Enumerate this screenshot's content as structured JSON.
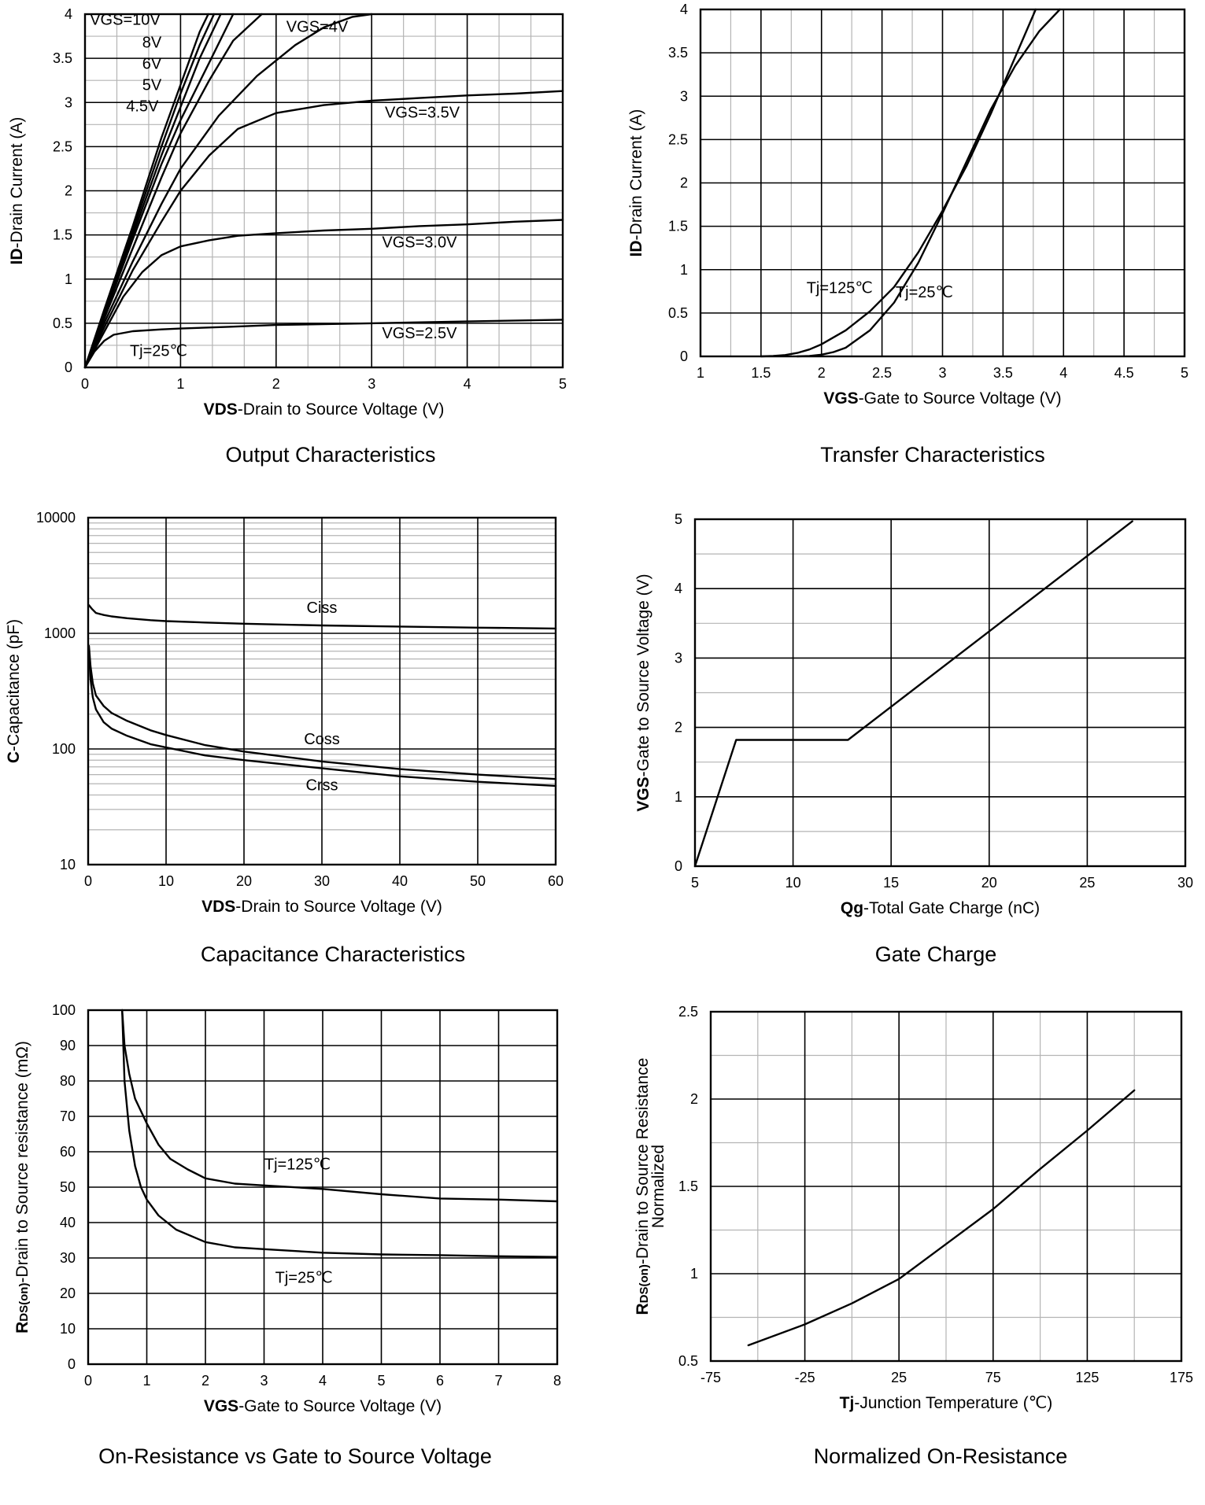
{
  "chart_data": [
    {
      "id": "output",
      "type": "line",
      "title": "Output Characteristics",
      "xlabel_bold": "VDS",
      "xlabel_rest": "-Drain to Source Voltage (V)",
      "ylabel_bold": "ID",
      "ylabel_rest": "-Drain Current (A)",
      "xlim": [
        0,
        5
      ],
      "ylim": [
        0,
        4
      ],
      "xscale": "linear",
      "yscale": "linear",
      "xticks": [
        0,
        1,
        2,
        3,
        4,
        5
      ],
      "yticks": [
        0,
        0.5,
        1,
        1.5,
        2,
        2.5,
        3,
        3.5,
        4
      ],
      "xtick_labels": [
        "0",
        "1",
        "2",
        "3",
        "4",
        "5"
      ],
      "ytick_labels": [
        "0",
        "0.5",
        "1",
        "1.5",
        "2",
        "2.5",
        "3",
        "3.5",
        "4"
      ],
      "grid": {
        "major_x": true,
        "major_y": true,
        "minor_x": 2,
        "minor_y": 1
      },
      "series": [
        {
          "name": "VGS=10V",
          "x": [
            0,
            0.2,
            0.5,
            0.8,
            1.0,
            1.2,
            1.29
          ],
          "y": [
            0,
            0.65,
            1.6,
            2.6,
            3.2,
            3.8,
            4.0
          ]
        },
        {
          "name": "8V",
          "x": [
            0,
            0.2,
            0.5,
            0.8,
            1.0,
            1.2,
            1.35
          ],
          "y": [
            0,
            0.62,
            1.55,
            2.5,
            3.1,
            3.65,
            4.0
          ]
        },
        {
          "name": "6V",
          "x": [
            0,
            0.2,
            0.5,
            0.8,
            1.0,
            1.2,
            1.42
          ],
          "y": [
            0,
            0.6,
            1.5,
            2.4,
            2.95,
            3.5,
            4.0
          ]
        },
        {
          "name": "5V",
          "x": [
            0,
            0.2,
            0.5,
            0.8,
            1.0,
            1.3,
            1.55
          ],
          "y": [
            0,
            0.58,
            1.45,
            2.3,
            2.8,
            3.45,
            4.0
          ]
        },
        {
          "name": "4.5V",
          "x": [
            0,
            0.2,
            0.5,
            0.8,
            1.0,
            1.3,
            1.55,
            1.85
          ],
          "y": [
            0,
            0.55,
            1.35,
            2.15,
            2.65,
            3.25,
            3.7,
            4.0
          ]
        },
        {
          "name": "VGS=4V",
          "x": [
            0,
            0.2,
            0.5,
            0.8,
            1.0,
            1.4,
            1.8,
            2.2,
            2.5,
            2.8,
            3.0
          ],
          "y": [
            0,
            0.5,
            1.2,
            1.85,
            2.25,
            2.85,
            3.3,
            3.65,
            3.85,
            3.97,
            4.0
          ]
        },
        {
          "name": "VGS=3.5V",
          "x": [
            0,
            0.2,
            0.5,
            0.8,
            1.0,
            1.3,
            1.6,
            2.0,
            2.5,
            3.0,
            3.5,
            4.0,
            4.5,
            5.0
          ],
          "y": [
            0,
            0.45,
            1.1,
            1.65,
            2.0,
            2.4,
            2.7,
            2.88,
            2.97,
            3.02,
            3.05,
            3.08,
            3.1,
            3.13
          ]
        },
        {
          "name": "VGS=3.0V",
          "x": [
            0,
            0.2,
            0.4,
            0.6,
            0.8,
            1.0,
            1.3,
            1.6,
            2.0,
            2.5,
            3.0,
            3.5,
            4.0,
            4.5,
            5.0
          ],
          "y": [
            0,
            0.4,
            0.8,
            1.08,
            1.27,
            1.37,
            1.44,
            1.49,
            1.52,
            1.55,
            1.57,
            1.6,
            1.62,
            1.65,
            1.67
          ]
        },
        {
          "name": "VGS=2.5V",
          "x": [
            0,
            0.1,
            0.2,
            0.3,
            0.5,
            0.8,
            1.0,
            1.5,
            2.0,
            3.0,
            4.0,
            5.0
          ],
          "y": [
            0,
            0.18,
            0.3,
            0.37,
            0.41,
            0.43,
            0.44,
            0.46,
            0.48,
            0.5,
            0.52,
            0.54
          ]
        }
      ],
      "annotations": [
        {
          "text": "VGS=10V",
          "x": 0.42,
          "y": 3.88
        },
        {
          "text": "8V",
          "x": 0.7,
          "y": 3.62
        },
        {
          "text": "6V",
          "x": 0.7,
          "y": 3.38
        },
        {
          "text": "5V",
          "x": 0.7,
          "y": 3.14
        },
        {
          "text": "4.5V",
          "x": 0.6,
          "y": 2.9
        },
        {
          "text": "VGS=4V",
          "x": 2.43,
          "y": 3.8
        },
        {
          "text": "VGS=3.5V",
          "x": 3.53,
          "y": 2.83
        },
        {
          "text": "VGS=3.0V",
          "x": 3.5,
          "y": 1.36
        },
        {
          "text": "VGS=2.5V",
          "x": 3.5,
          "y": 0.33
        },
        {
          "text": "Tj=25℃",
          "x": 0.77,
          "y": 0.13
        }
      ]
    },
    {
      "id": "transfer",
      "type": "line",
      "title": "Transfer Characteristics",
      "xlabel_bold": "VGS",
      "xlabel_rest": "-Gate to Source Voltage (V)",
      "ylabel_bold": "ID",
      "ylabel_rest": "-Drain Current (A)",
      "xlim": [
        1,
        5
      ],
      "ylim": [
        0,
        4
      ],
      "xscale": "linear",
      "yscale": "linear",
      "xticks": [
        1,
        1.5,
        2,
        2.5,
        3,
        3.5,
        4,
        4.5,
        5
      ],
      "yticks": [
        0,
        0.5,
        1,
        1.5,
        2,
        2.5,
        3,
        3.5,
        4
      ],
      "xtick_labels": [
        "1",
        "1.5",
        "2",
        "2.5",
        "3",
        "3.5",
        "4",
        "4.5",
        "5"
      ],
      "ytick_labels": [
        "0",
        "0.5",
        "1",
        "1.5",
        "2",
        "2.5",
        "3",
        "3.5",
        "4"
      ],
      "grid": {
        "major_x": true,
        "major_y": true,
        "minor_x": 1,
        "minor_y": 0
      },
      "series": [
        {
          "name": "Tj=125℃",
          "x": [
            1.5,
            1.6,
            1.7,
            1.8,
            1.9,
            2.0,
            2.2,
            2.4,
            2.6,
            2.8,
            3.0,
            3.2,
            3.4,
            3.6,
            3.77
          ],
          "y": [
            0,
            0.005,
            0.015,
            0.04,
            0.08,
            0.14,
            0.3,
            0.52,
            0.8,
            1.2,
            1.68,
            2.2,
            2.8,
            3.45,
            4.0
          ]
        },
        {
          "name": "Tj=25℃",
          "x": [
            1.8,
            1.9,
            2.0,
            2.1,
            2.2,
            2.4,
            2.6,
            2.8,
            3.0,
            3.2,
            3.4,
            3.6,
            3.8,
            3.97
          ],
          "y": [
            0,
            0.005,
            0.02,
            0.05,
            0.1,
            0.3,
            0.62,
            1.08,
            1.65,
            2.25,
            2.85,
            3.35,
            3.75,
            4.0
          ]
        }
      ],
      "annotations": [
        {
          "text": "Tj=125℃",
          "x": 2.15,
          "y": 0.73
        },
        {
          "text": "Tj=25℃",
          "x": 2.85,
          "y": 0.68
        }
      ]
    },
    {
      "id": "capacitance",
      "type": "line",
      "title": "Capacitance Characteristics",
      "xlabel_bold": "VDS",
      "xlabel_rest": "-Drain to Source Voltage (V)",
      "ylabel_bold": "C",
      "ylabel_rest": "-Capacitance (pF)",
      "xlim": [
        0,
        60
      ],
      "ylim": [
        10,
        10000
      ],
      "xscale": "linear",
      "yscale": "log",
      "xticks": [
        0,
        10,
        20,
        30,
        40,
        50,
        60
      ],
      "yticks": [
        10,
        100,
        1000,
        10000
      ],
      "xtick_labels": [
        "0",
        "10",
        "20",
        "30",
        "40",
        "50",
        "60"
      ],
      "ytick_labels": [
        "10",
        "100",
        "1000",
        "10000"
      ],
      "grid": {
        "major_x": true,
        "major_y": true,
        "minor_x": 0,
        "minor_y": "log"
      },
      "series": [
        {
          "name": "Ciss",
          "x": [
            0.1,
            0.5,
            1,
            2,
            3,
            5,
            8,
            10,
            15,
            20,
            30,
            40,
            50,
            60
          ],
          "y": [
            1750,
            1620,
            1500,
            1440,
            1400,
            1350,
            1300,
            1275,
            1240,
            1210,
            1170,
            1145,
            1120,
            1100
          ]
        },
        {
          "name": "Coss",
          "x": [
            0.1,
            0.3,
            0.6,
            1,
            2,
            3,
            5,
            8,
            10,
            15,
            20,
            30,
            40,
            50,
            60
          ],
          "y": [
            780,
            520,
            370,
            290,
            235,
            205,
            175,
            145,
            132,
            108,
            95,
            78,
            67,
            60,
            55
          ]
        },
        {
          "name": "Crss",
          "x": [
            0.1,
            0.3,
            0.6,
            1,
            2,
            3,
            5,
            8,
            10,
            15,
            20,
            30,
            40,
            50,
            60
          ],
          "y": [
            700,
            400,
            280,
            220,
            170,
            150,
            130,
            110,
            103,
            88,
            80,
            68,
            58,
            52,
            48
          ]
        }
      ],
      "annotations": [
        {
          "text": "Ciss",
          "x": 30,
          "y": 1500
        },
        {
          "text": "Coss",
          "x": 30,
          "y": 110
        },
        {
          "text": "Crss",
          "x": 30,
          "y": 44
        }
      ]
    },
    {
      "id": "gatecharge",
      "type": "line",
      "title": "Gate Charge",
      "xlabel_bold": "Qg",
      "xlabel_rest": "-Total Gate Charge (nC)",
      "ylabel_bold": "VGS",
      "ylabel_rest": "-Gate to Source Voltage (V)",
      "xlim": [
        5,
        30
      ],
      "ylim": [
        0,
        5
      ],
      "xscale": "linear",
      "yscale": "linear",
      "xticks": [
        5,
        10,
        15,
        20,
        25,
        30
      ],
      "yticks": [
        0,
        1,
        2,
        3,
        4,
        5
      ],
      "xtick_labels": [
        "5",
        "10",
        "15",
        "20",
        "25",
        "30"
      ],
      "ytick_labels": [
        "0",
        "1",
        "2",
        "3",
        "4",
        "5"
      ],
      "grid": {
        "major_x": true,
        "major_y": true,
        "minor_x": 0,
        "minor_y": 1
      },
      "series": [
        {
          "name": "VGS",
          "x": [
            5,
            7.1,
            12.8,
            27.3
          ],
          "y": [
            0,
            1.82,
            1.82,
            4.97
          ]
        }
      ],
      "annotations": []
    },
    {
      "id": "rdson_vgs",
      "type": "line",
      "title": "On-Resistance vs Gate to Source Voltage",
      "xlabel_bold": "VGS",
      "xlabel_rest": "-Gate to Source Voltage (V)",
      "ylabel_bold": "R",
      "ylabel_sub": "DS(on)",
      "ylabel_rest": "-Drain to Source resistance (mΩ)",
      "xlim": [
        0,
        8
      ],
      "ylim": [
        0,
        100
      ],
      "xscale": "linear",
      "yscale": "linear",
      "xticks": [
        0,
        1,
        2,
        3,
        4,
        5,
        6,
        7,
        8
      ],
      "yticks": [
        0,
        10,
        20,
        30,
        40,
        50,
        60,
        70,
        80,
        90,
        100
      ],
      "xtick_labels": [
        "0",
        "1",
        "2",
        "3",
        "4",
        "5",
        "6",
        "7",
        "8"
      ],
      "ytick_labels": [
        "0",
        "10",
        "20",
        "30",
        "40",
        "50",
        "60",
        "70",
        "80",
        "90",
        "100"
      ],
      "grid": {
        "major_x": true,
        "major_y": true,
        "minor_x": 0,
        "minor_y": 0
      },
      "series": [
        {
          "name": "Tj=125℃",
          "x": [
            0.58,
            0.62,
            0.7,
            0.8,
            1.0,
            1.2,
            1.4,
            1.7,
            2.0,
            2.5,
            3.0,
            4.0,
            5.0,
            6.0,
            7.0,
            8.0
          ],
          "y": [
            100,
            90,
            82,
            75,
            68,
            62,
            58,
            55,
            52.5,
            51,
            50.5,
            49.5,
            48,
            46.8,
            46.5,
            46
          ]
        },
        {
          "name": "Tj=25℃",
          "x": [
            0.58,
            0.62,
            0.7,
            0.8,
            0.9,
            1.0,
            1.2,
            1.5,
            2.0,
            2.5,
            3.0,
            4.0,
            5.0,
            6.0,
            7.0,
            8.0
          ],
          "y": [
            100,
            80,
            66,
            56,
            50,
            46.5,
            42,
            38,
            34.5,
            33,
            32.5,
            31.5,
            31,
            30.8,
            30.5,
            30.3
          ]
        }
      ],
      "annotations": [
        {
          "text": "Tj=125℃",
          "x": 3.57,
          "y": 55
        },
        {
          "text": "Tj=25℃",
          "x": 3.68,
          "y": 23
        }
      ]
    },
    {
      "id": "rdson_tj",
      "type": "line",
      "title": "Normalized On-Resistance",
      "xlabel_bold": "Tj",
      "xlabel_rest": "-Junction Temperature (℃)",
      "ylabel_bold": "R",
      "ylabel_sub": "DS(on)",
      "ylabel_rest": "-Drain to Source Resistance",
      "ylabel_line2": "Normalized",
      "xlim": [
        -75,
        175
      ],
      "ylim": [
        0.5,
        2.5
      ],
      "xscale": "linear",
      "yscale": "linear",
      "xticks": [
        -75,
        -25,
        25,
        75,
        125,
        175
      ],
      "yticks": [
        0.5,
        1,
        1.5,
        2,
        2.5
      ],
      "xtick_labels": [
        "-75",
        "-25",
        "25",
        "75",
        "125",
        "175"
      ],
      "ytick_labels": [
        "0.5",
        "1",
        "1.5",
        "2",
        "2.5"
      ],
      "grid": {
        "major_x": true,
        "major_y": true,
        "minor_x": 1,
        "minor_y": 1
      },
      "series": [
        {
          "name": "RDS(on)",
          "x": [
            -55,
            -25,
            0,
            25,
            50,
            75,
            100,
            125,
            150
          ],
          "y": [
            0.59,
            0.71,
            0.83,
            0.97,
            1.17,
            1.37,
            1.6,
            1.82,
            2.05
          ]
        }
      ],
      "annotations": []
    }
  ]
}
